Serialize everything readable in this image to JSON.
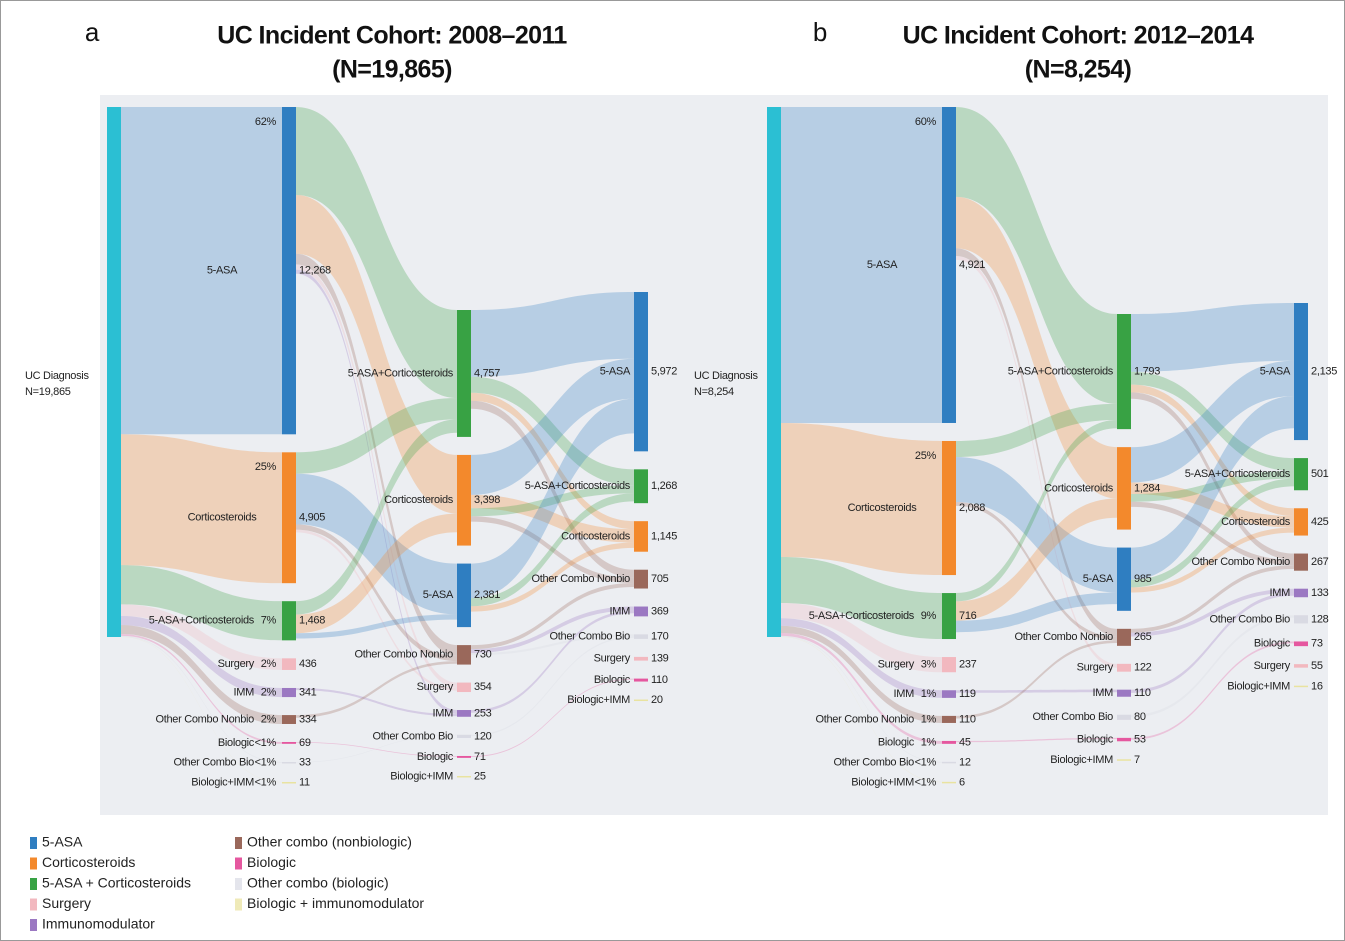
{
  "chart_data": [
    {
      "type": "sankey",
      "panel": "a",
      "title": "UC Incident Cohort: 2008–2011",
      "subtitle": "(N=19,865)",
      "source": {
        "name": "UC Diagnosis",
        "value": 19865,
        "value_label": "N=19,865",
        "color": "#2bbfd3"
      },
      "columns": [
        {
          "nodes": [
            {
              "name": "5-ASA",
              "value": 12268,
              "value_label": "12,268",
              "share": "62%",
              "color": "#2f7ec1"
            },
            {
              "name": "Corticosteroids",
              "value": 4905,
              "value_label": "4,905",
              "share": "25%",
              "color": "#f3892c"
            },
            {
              "name": "5-ASA+Corticosteroids",
              "value": 1468,
              "value_label": "1,468",
              "share": "7%",
              "color": "#38a244"
            },
            {
              "name": "Surgery",
              "value": 436,
              "share": "2%",
              "color": "#f2b8bf"
            },
            {
              "name": "IMM",
              "value": 341,
              "share": "2%",
              "color": "#9b78c2"
            },
            {
              "name": "Other Combo Nonbio",
              "value": 334,
              "share": "2%",
              "color": "#9a685b"
            },
            {
              "name": "Biologic",
              "value": 69,
              "share": "<1%",
              "color": "#e5579f"
            },
            {
              "name": "Other Combo Bio",
              "value": 33,
              "share": "<1%",
              "color": "#d9dae3"
            },
            {
              "name": "Biologic+IMM",
              "value": 11,
              "share": "<1%",
              "color": "#e9e3a0"
            }
          ],
          "links": [
            {
              "source": 0,
              "target": 0,
              "value": 3300
            },
            {
              "source": 0,
              "target": 1,
              "value": 2200
            },
            {
              "source": 0,
              "target": 3,
              "value": 400
            },
            {
              "source": 0,
              "target": 4,
              "value": 200
            },
            {
              "source": 0,
              "target": 5,
              "value": 150
            },
            {
              "source": 1,
              "target": 0,
              "value": 800
            },
            {
              "source": 1,
              "target": 2,
              "value": 1900
            },
            {
              "source": 1,
              "target": 3,
              "value": 200
            },
            {
              "source": 1,
              "target": 4,
              "value": 100
            },
            {
              "source": 2,
              "target": 0,
              "value": 500
            },
            {
              "source": 2,
              "target": 1,
              "value": 700
            },
            {
              "source": 2,
              "target": 2,
              "value": 200
            },
            {
              "source": 4,
              "target": 5,
              "value": 80
            },
            {
              "source": 5,
              "target": 3,
              "value": 100
            },
            {
              "source": 6,
              "target": 7,
              "value": 30
            },
            {
              "source": 7,
              "target": 6,
              "value": 20
            }
          ]
        },
        {
          "nodes": [
            {
              "name": "5-ASA+Corticosteroids",
              "value": 4757,
              "value_label": "4,757",
              "color": "#38a244"
            },
            {
              "name": "Corticosteroids",
              "value": 3398,
              "value_label": "3,398",
              "color": "#f3892c"
            },
            {
              "name": "5-ASA",
              "value": 2381,
              "value_label": "2,381",
              "color": "#2f7ec1"
            },
            {
              "name": "Other Combo Nonbio",
              "value": 730,
              "color": "#9a685b"
            },
            {
              "name": "Surgery",
              "value": 354,
              "color": "#f2b8bf"
            },
            {
              "name": "IMM",
              "value": 253,
              "color": "#9b78c2"
            },
            {
              "name": "Other Combo Bio",
              "value": 120,
              "color": "#d9dae3"
            },
            {
              "name": "Biologic",
              "value": 71,
              "color": "#e5579f"
            },
            {
              "name": "Biologic+IMM",
              "value": 25,
              "color": "#e9e3a0"
            }
          ],
          "links": [
            {
              "source": 0,
              "target": 0,
              "value": 2500
            },
            {
              "source": 0,
              "target": 1,
              "value": 600
            },
            {
              "source": 0,
              "target": 2,
              "value": 300
            },
            {
              "source": 0,
              "target": 3,
              "value": 300
            },
            {
              "source": 1,
              "target": 0,
              "value": 1500
            },
            {
              "source": 1,
              "target": 2,
              "value": 500
            },
            {
              "source": 1,
              "target": 1,
              "value": 300
            },
            {
              "source": 1,
              "target": 3,
              "value": 200
            },
            {
              "source": 2,
              "target": 0,
              "value": 1300
            },
            {
              "source": 2,
              "target": 1,
              "value": 300
            },
            {
              "source": 2,
              "target": 2,
              "value": 200
            },
            {
              "source": 3,
              "target": 3,
              "value": 150
            },
            {
              "source": 3,
              "target": 4,
              "value": 150
            },
            {
              "source": 3,
              "target": 5,
              "value": 80
            },
            {
              "source": 5,
              "target": 4,
              "value": 100
            },
            {
              "source": 6,
              "target": 5,
              "value": 50
            },
            {
              "source": 7,
              "target": 7,
              "value": 40
            }
          ]
        },
        {
          "nodes": [
            {
              "name": "5-ASA",
              "value": 5972,
              "value_label": "5,972",
              "color": "#2f7ec1"
            },
            {
              "name": "5-ASA+Corticosteroids",
              "value": 1268,
              "value_label": "1,268",
              "color": "#38a244"
            },
            {
              "name": "Corticosteroids",
              "value": 1145,
              "value_label": "1,145",
              "color": "#f3892c"
            },
            {
              "name": "Other Combo Nonbio",
              "value": 705,
              "color": "#9a685b"
            },
            {
              "name": "IMM",
              "value": 369,
              "color": "#9b78c2"
            },
            {
              "name": "Other Combo Bio",
              "value": 170,
              "color": "#d9dae3"
            },
            {
              "name": "Surgery",
              "value": 139,
              "color": "#f2b8bf"
            },
            {
              "name": "Biologic",
              "value": 110,
              "color": "#e5579f"
            },
            {
              "name": "Biologic+IMM",
              "value": 20,
              "color": "#e9e3a0"
            }
          ]
        }
      ]
    },
    {
      "type": "sankey",
      "panel": "b",
      "title": "UC Incident Cohort: 2012–2014",
      "subtitle": "(N=8,254)",
      "source": {
        "name": "UC Diagnosis",
        "value": 8254,
        "value_label": "N=8,254",
        "color": "#2bbfd3"
      },
      "columns": [
        {
          "nodes": [
            {
              "name": "5-ASA",
              "value": 4921,
              "value_label": "4,921",
              "share": "60%",
              "color": "#2f7ec1"
            },
            {
              "name": "Corticosteroids",
              "value": 2088,
              "value_label": "2,088",
              "share": "25%",
              "color": "#f3892c"
            },
            {
              "name": "5-ASA+Corticosteroids",
              "value": 716,
              "share": "9%",
              "color": "#38a244"
            },
            {
              "name": "Surgery",
              "value": 237,
              "share": "3%",
              "color": "#f2b8bf"
            },
            {
              "name": "IMM",
              "value": 119,
              "share": "1%",
              "color": "#9b78c2"
            },
            {
              "name": "Other Combo Nonbio",
              "value": 110,
              "share": "1%",
              "color": "#9a685b"
            },
            {
              "name": "Biologic",
              "value": 45,
              "share": "1%",
              "color": "#e5579f"
            },
            {
              "name": "Other Combo Bio",
              "value": 12,
              "share": "<1%",
              "color": "#d9dae3"
            },
            {
              "name": "Biologic+IMM",
              "value": 6,
              "share": "<1%",
              "color": "#e9e3a0"
            }
          ],
          "links": [
            {
              "source": 0,
              "target": 0,
              "value": 1400
            },
            {
              "source": 0,
              "target": 1,
              "value": 800
            },
            {
              "source": 0,
              "target": 3,
              "value": 120
            },
            {
              "source": 0,
              "target": 4,
              "value": 60
            },
            {
              "source": 1,
              "target": 0,
              "value": 250
            },
            {
              "source": 1,
              "target": 2,
              "value": 700
            },
            {
              "source": 1,
              "target": 3,
              "value": 60
            },
            {
              "source": 2,
              "target": 0,
              "value": 130
            },
            {
              "source": 2,
              "target": 1,
              "value": 300
            },
            {
              "source": 2,
              "target": 2,
              "value": 180
            },
            {
              "source": 4,
              "target": 5,
              "value": 40
            },
            {
              "source": 5,
              "target": 3,
              "value": 40
            },
            {
              "source": 6,
              "target": 7,
              "value": 20
            }
          ]
        },
        {
          "nodes": [
            {
              "name": "5-ASA+Corticosteroids",
              "value": 1793,
              "value_label": "1,793",
              "color": "#38a244"
            },
            {
              "name": "Corticosteroids",
              "value": 1284,
              "value_label": "1,284",
              "color": "#f3892c"
            },
            {
              "name": "5-ASA",
              "value": 985,
              "color": "#2f7ec1"
            },
            {
              "name": "Other Combo Nonbio",
              "value": 265,
              "color": "#9a685b"
            },
            {
              "name": "Surgery",
              "value": 122,
              "color": "#f2b8bf"
            },
            {
              "name": "IMM",
              "value": 110,
              "color": "#9b78c2"
            },
            {
              "name": "Other Combo Bio",
              "value": 80,
              "color": "#d9dae3"
            },
            {
              "name": "Biologic",
              "value": 53,
              "color": "#e5579f"
            },
            {
              "name": "Biologic+IMM",
              "value": 7,
              "color": "#e9e3a0"
            }
          ],
          "links": [
            {
              "source": 0,
              "target": 0,
              "value": 900
            },
            {
              "source": 0,
              "target": 1,
              "value": 200
            },
            {
              "source": 0,
              "target": 2,
              "value": 120
            },
            {
              "source": 0,
              "target": 3,
              "value": 100
            },
            {
              "source": 1,
              "target": 0,
              "value": 550
            },
            {
              "source": 1,
              "target": 2,
              "value": 180
            },
            {
              "source": 1,
              "target": 1,
              "value": 120
            },
            {
              "source": 1,
              "target": 3,
              "value": 80
            },
            {
              "source": 2,
              "target": 0,
              "value": 500
            },
            {
              "source": 2,
              "target": 1,
              "value": 120
            },
            {
              "source": 2,
              "target": 2,
              "value": 80
            },
            {
              "source": 3,
              "target": 3,
              "value": 60
            },
            {
              "source": 3,
              "target": 4,
              "value": 60
            },
            {
              "source": 5,
              "target": 4,
              "value": 50
            },
            {
              "source": 6,
              "target": 5,
              "value": 40
            },
            {
              "source": 7,
              "target": 6,
              "value": 30
            }
          ]
        },
        {
          "nodes": [
            {
              "name": "5-ASA",
              "value": 2135,
              "value_label": "2,135",
              "color": "#2f7ec1"
            },
            {
              "name": "5-ASA+Corticosteroids",
              "value": 501,
              "color": "#38a244"
            },
            {
              "name": "Corticosteroids",
              "value": 425,
              "color": "#f3892c"
            },
            {
              "name": "Other Combo Nonbio",
              "value": 267,
              "color": "#9a685b"
            },
            {
              "name": "IMM",
              "value": 133,
              "color": "#9b78c2"
            },
            {
              "name": "Other Combo Bio",
              "value": 128,
              "color": "#d9dae3"
            },
            {
              "name": "Biologic",
              "value": 73,
              "color": "#e5579f"
            },
            {
              "name": "Surgery",
              "value": 55,
              "color": "#f2b8bf"
            },
            {
              "name": "Biologic+IMM",
              "value": 16,
              "color": "#e9e3a0"
            }
          ]
        }
      ]
    }
  ],
  "legend": [
    {
      "name": "5-ASA",
      "color": "#2f7ec1"
    },
    {
      "name": "Corticosteroids",
      "color": "#f3892c"
    },
    {
      "name": "5-ASA + Corticosteroids",
      "color": "#38a244"
    },
    {
      "name": "Surgery",
      "color": "#f2b8bf"
    },
    {
      "name": "Immunomodulator",
      "color": "#9b78c2"
    },
    {
      "name": "Other combo (nonbiologic)",
      "color": "#9a685b"
    },
    {
      "name": "Biologic",
      "color": "#e5579f"
    },
    {
      "name": "Other combo (biologic)",
      "color": "#e4e5ec"
    },
    {
      "name": "Biologic + immunomodulator",
      "color": "#efeab8"
    }
  ]
}
